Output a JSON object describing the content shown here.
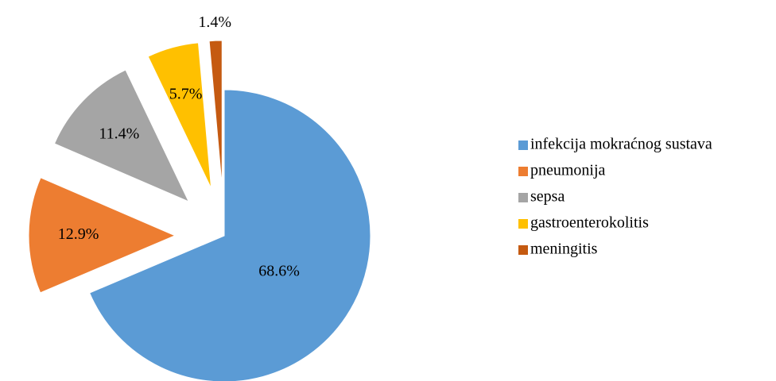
{
  "chart_data": {
    "type": "pie",
    "categories": [
      "infekcija mokraćnog sustava",
      "pneumonija",
      "sepsa",
      "gastroenterokolitis",
      "meningitis"
    ],
    "values": [
      68.6,
      12.9,
      11.4,
      5.7,
      1.4
    ],
    "value_labels": [
      "68.6%",
      "12.9%",
      "11.4%",
      "5.7%",
      "1.4%"
    ],
    "colors": [
      "#5b9bd5",
      "#ed7d31",
      "#a5a5a5",
      "#ffc000",
      "#c55a11"
    ],
    "legend": "right"
  }
}
